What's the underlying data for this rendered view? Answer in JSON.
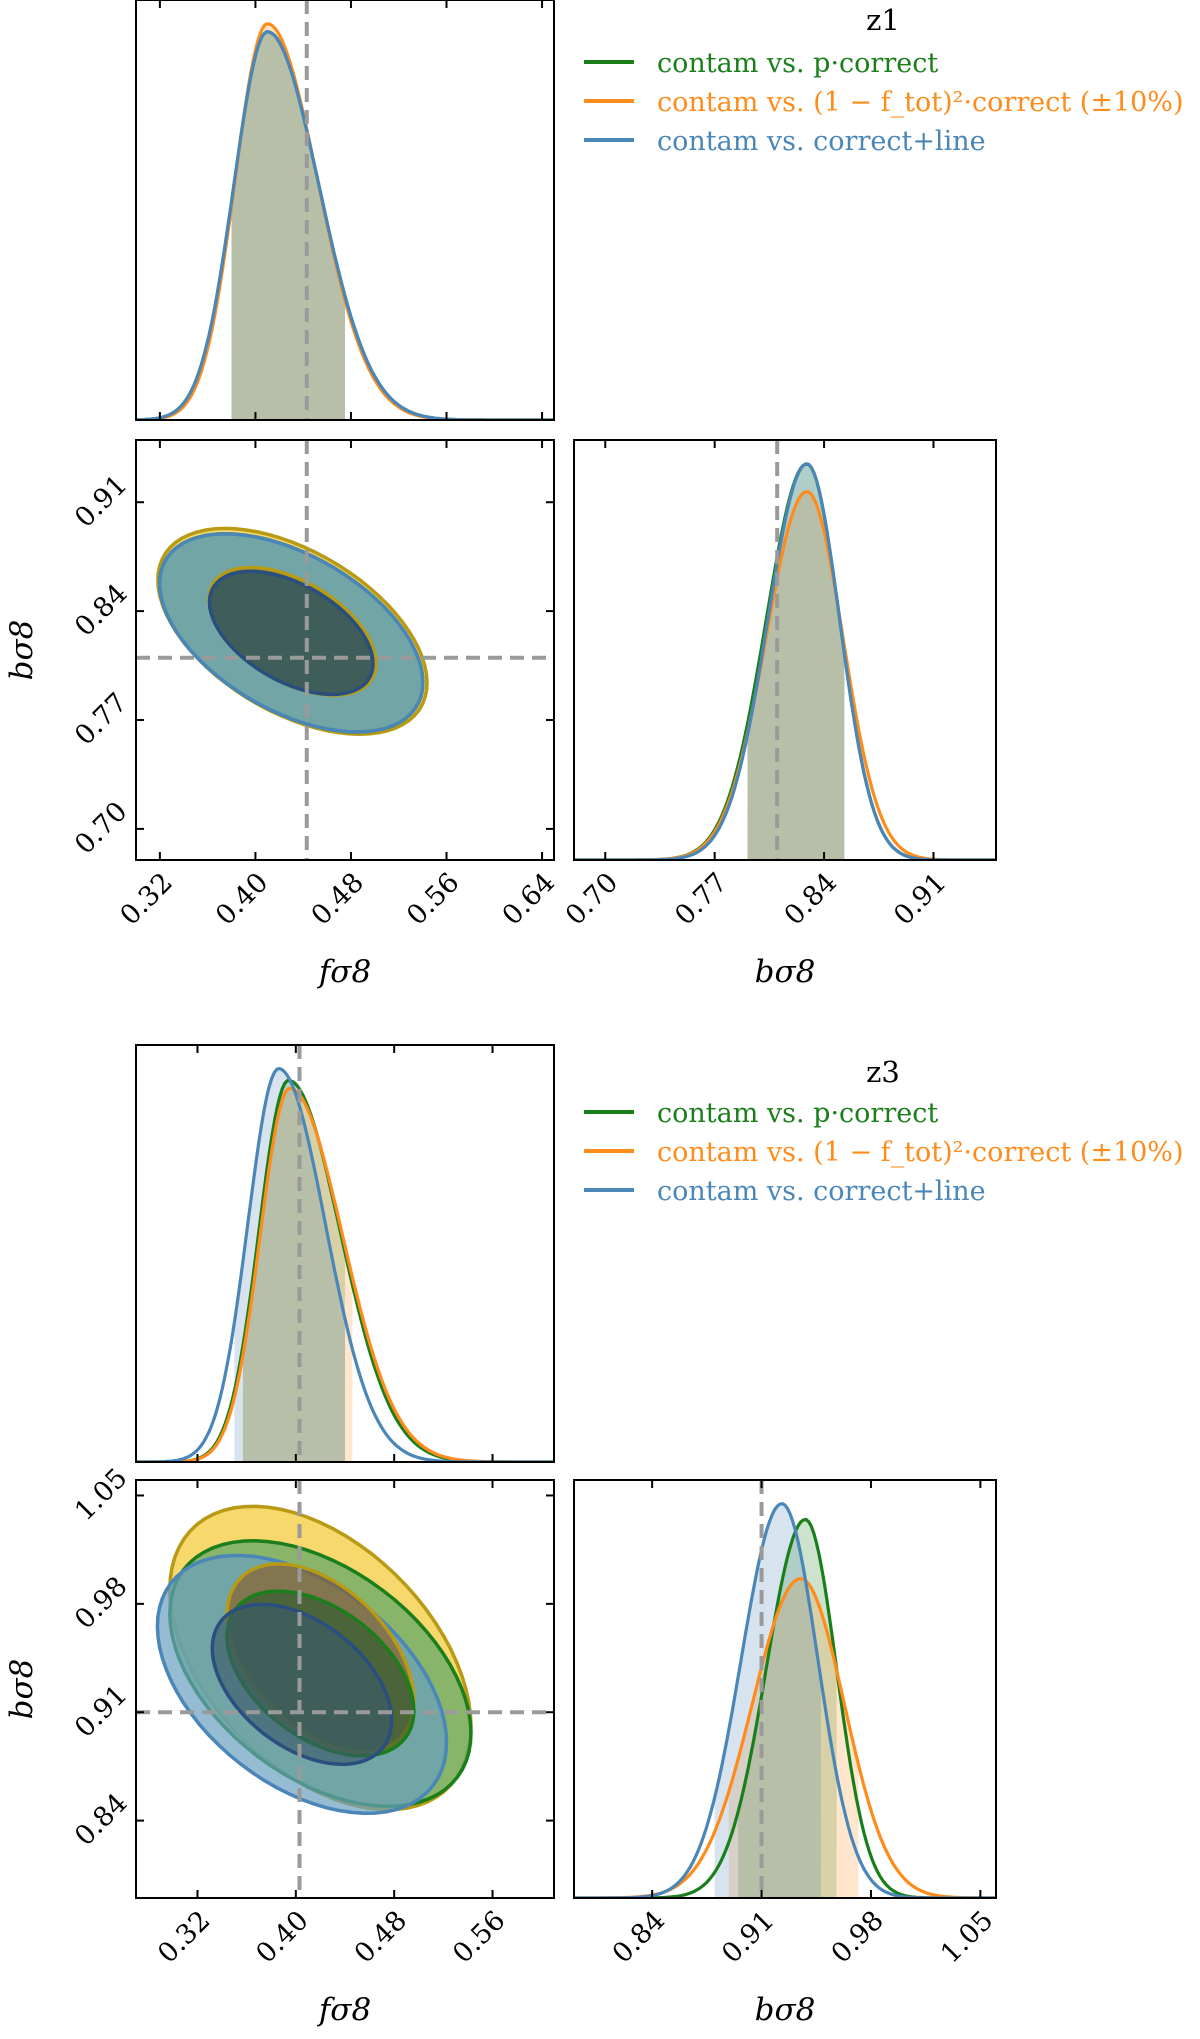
{
  "figure": {
    "panels": [
      "z1",
      "z3"
    ]
  },
  "colors": {
    "green": "#1a7f1a",
    "orange": "#ff8c1a",
    "blue": "#4a86b8",
    "gold": "#b89a14",
    "truth": "#9a9a9a"
  },
  "chart_data": [
    {
      "type": "corner",
      "title": "z1",
      "params": [
        "fσ8",
        "bσ8"
      ],
      "xlabel_fs8": "fσ8",
      "xlabel_bs8": "bσ8",
      "ylabel_bs8": "bσ8",
      "fs8_range": [
        0.3,
        0.65
      ],
      "bs8_range": [
        0.68,
        0.95
      ],
      "fs8_ticks": [
        "0.32",
        "0.40",
        "0.48",
        "0.56",
        "0.64"
      ],
      "bs8_ticks": [
        "0.70",
        "0.77",
        "0.84",
        "0.91"
      ],
      "truth": {
        "fs8": 0.443,
        "bs8": 0.81
      },
      "legend": [
        {
          "label": "contam vs. p·correct",
          "color": "#1a7f1a"
        },
        {
          "label": "contam vs. (1 − f_tot)²·correct (±10%)",
          "color": "#ff8c1a"
        },
        {
          "label": "contam vs. correct+line",
          "color": "#4a86b8"
        }
      ],
      "series": [
        {
          "name": "contam vs. p·correct",
          "color": "#1a7f1a",
          "fs8": {
            "mean": 0.41,
            "sl": 0.028,
            "sr": 0.043,
            "peak": 0.98,
            "ci": [
              0.38,
              0.475
            ]
          },
          "bs8": {
            "mean": 0.829,
            "sl": 0.026,
            "sr": 0.021,
            "peak": 1.0,
            "ci": [
              0.791,
              0.853
            ]
          },
          "ellipse": {
            "cx": 0.43,
            "cy": 0.826,
            "sx": 0.045,
            "sy": 0.026,
            "rho": -0.5
          }
        },
        {
          "name": "contam vs. (1 − f_tot)²·correct (±10%)",
          "color": "#ff8c1a",
          "fs8": {
            "mean": 0.41,
            "sl": 0.027,
            "sr": 0.042,
            "peak": 1.0,
            "ci": [
              0.38,
              0.475
            ]
          },
          "bs8": {
            "mean": 0.829,
            "sl": 0.026,
            "sr": 0.023,
            "peak": 0.93,
            "ci": [
              0.791,
              0.853
            ]
          },
          "ellipse": {
            "cx": 0.431,
            "cy": 0.827,
            "sx": 0.046,
            "sy": 0.027,
            "rho": -0.5
          }
        },
        {
          "name": "contam vs. correct+line",
          "color": "#4a86b8",
          "fs8": {
            "mean": 0.41,
            "sl": 0.028,
            "sr": 0.043,
            "peak": 0.98,
            "ci": [
              0.38,
              0.475
            ]
          },
          "bs8": {
            "mean": 0.829,
            "sl": 0.025,
            "sr": 0.021,
            "peak": 1.0,
            "ci": [
              0.791,
              0.853
            ]
          },
          "ellipse": {
            "cx": 0.43,
            "cy": 0.826,
            "sx": 0.045,
            "sy": 0.026,
            "rho": -0.5
          }
        }
      ]
    },
    {
      "type": "corner",
      "title": "z3",
      "params": [
        "fσ8",
        "bσ8"
      ],
      "xlabel_fs8": "fσ8",
      "xlabel_bs8": "bσ8",
      "ylabel_bs8": "bσ8",
      "fs8_range": [
        0.27,
        0.61
      ],
      "bs8_range": [
        0.79,
        1.06
      ],
      "fs8_ticks": [
        "0.32",
        "0.40",
        "0.48",
        "0.56"
      ],
      "bs8_ticks": [
        "0.84",
        "0.91",
        "0.98",
        "1.05"
      ],
      "truth": {
        "fs8": 0.403,
        "bs8": 0.91
      },
      "legend": [
        {
          "label": "contam vs. p·correct",
          "color": "#1a7f1a"
        },
        {
          "label": "contam vs. (1 − f_tot)²·correct (±10%)",
          "color": "#ff8c1a"
        },
        {
          "label": "contam vs. correct+line",
          "color": "#4a86b8"
        }
      ],
      "series": [
        {
          "name": "contam vs. p·correct",
          "color": "#1a7f1a",
          "fs8": {
            "mean": 0.394,
            "sl": 0.024,
            "sr": 0.042,
            "peak": 0.97,
            "ci": [
              0.357,
              0.44
            ]
          },
          "bs8": {
            "mean": 0.938,
            "sl": 0.025,
            "sr": 0.02,
            "peak": 0.96,
            "ci": [
              0.895,
              0.958
            ]
          },
          "ellipse": {
            "cx": 0.42,
            "cy": 0.935,
            "sx": 0.05,
            "sy": 0.035,
            "rho": -0.45
          }
        },
        {
          "name": "contam vs. (1 − f_tot)²·correct (±10%)",
          "color": "#ff8c1a",
          "fs8": {
            "mean": 0.395,
            "sl": 0.024,
            "sr": 0.043,
            "peak": 0.95,
            "ci": [
              0.357,
              0.446
            ]
          },
          "bs8": {
            "mean": 0.935,
            "sl": 0.031,
            "sr": 0.028,
            "peak": 0.81,
            "ci": [
              0.889,
              0.972
            ]
          },
          "ellipse": {
            "cx": 0.42,
            "cy": 0.945,
            "sx": 0.05,
            "sy": 0.04,
            "rho": -0.45
          }
        },
        {
          "name": "contam vs. correct+line",
          "color": "#4a86b8",
          "fs8": {
            "mean": 0.386,
            "sl": 0.025,
            "sr": 0.038,
            "peak": 1.0,
            "ci": [
              0.35,
              0.44
            ]
          },
          "bs8": {
            "mean": 0.923,
            "sl": 0.026,
            "sr": 0.023,
            "peak": 1.0,
            "ci": [
              0.88,
              0.948
            ]
          },
          "ellipse": {
            "cx": 0.405,
            "cy": 0.928,
            "sx": 0.048,
            "sy": 0.034,
            "rho": -0.45
          }
        }
      ]
    }
  ]
}
